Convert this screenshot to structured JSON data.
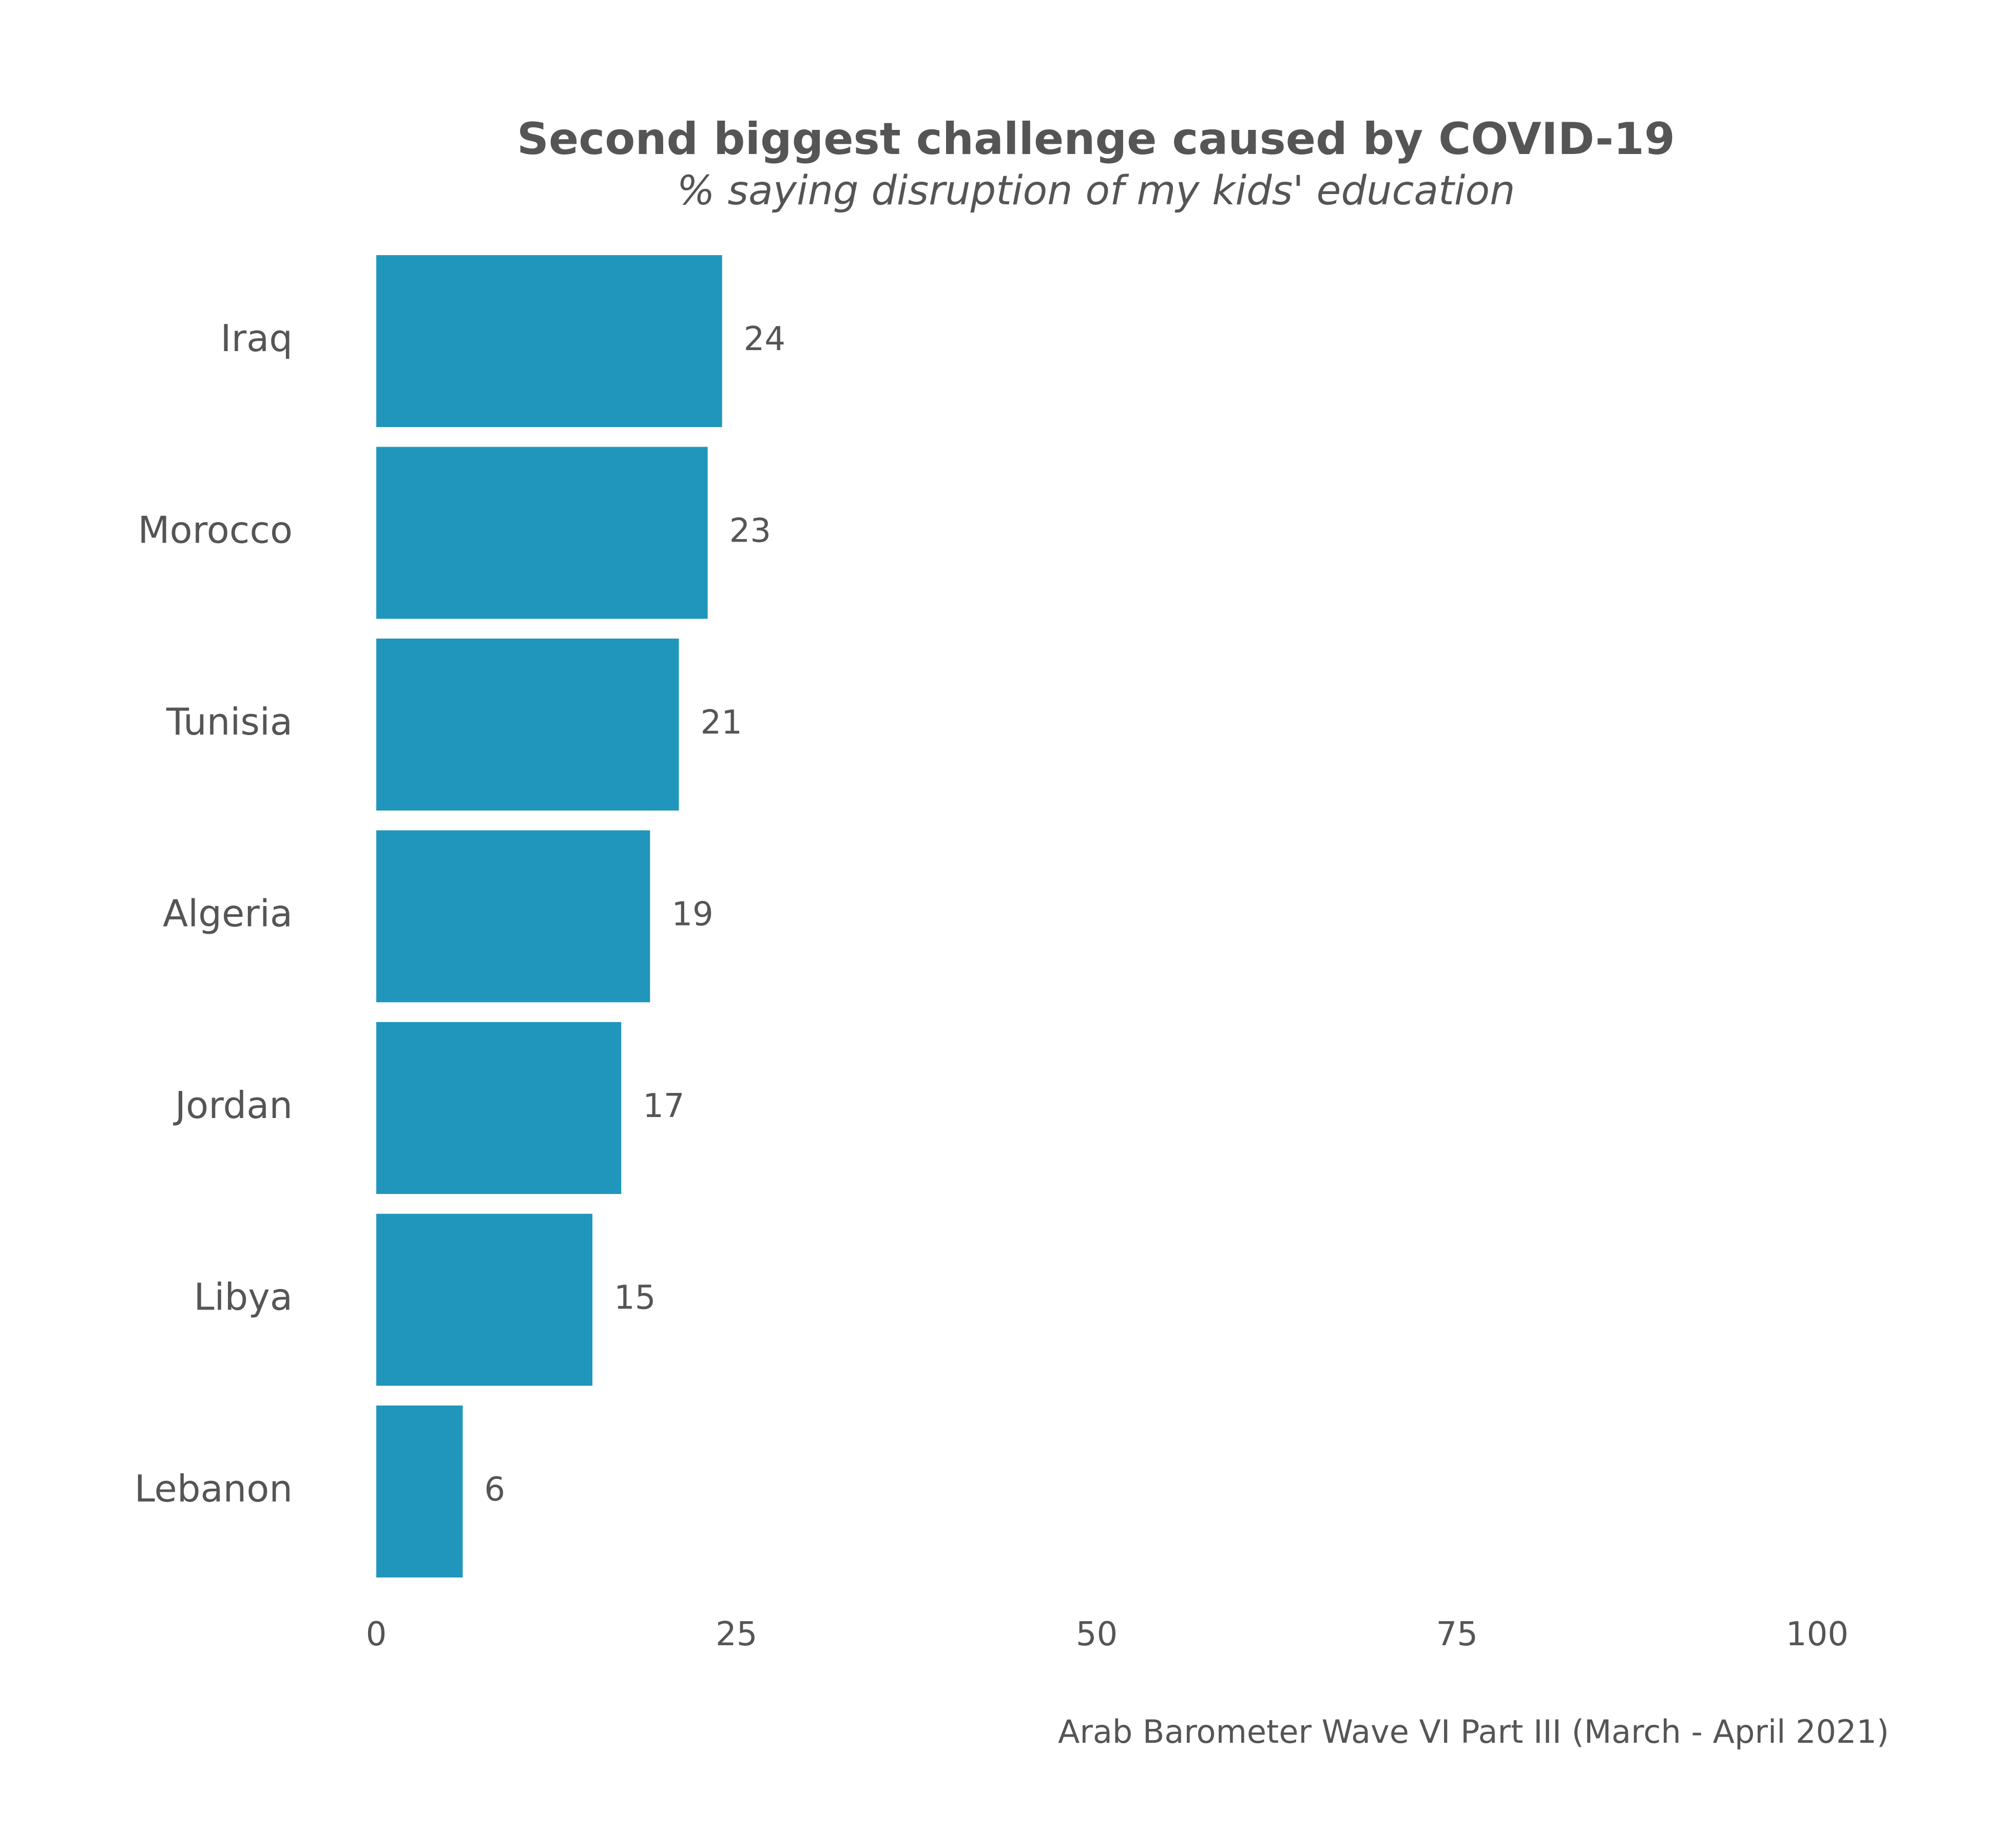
{
  "chart_data": {
    "type": "bar",
    "orientation": "horizontal",
    "title": "Second biggest challenge caused by COVID-19",
    "subtitle": "% saying disruption of my kids' education",
    "caption": "Arab Barometer Wave VI Part III (March - April 2021)",
    "categories": [
      "Iraq",
      "Morocco",
      "Tunisia",
      "Algeria",
      "Jordan",
      "Libya",
      "Lebanon"
    ],
    "values": [
      24,
      23,
      21,
      19,
      17,
      15,
      6
    ],
    "data_labels": [
      "24",
      "23",
      "21",
      "19",
      "17",
      "15",
      "6"
    ],
    "xlim": [
      0,
      100
    ],
    "xticks": [
      0,
      25,
      50,
      75,
      100
    ],
    "xtick_labels": [
      "0",
      "25",
      "50",
      "75",
      "100"
    ],
    "grid": false,
    "legend": "none",
    "bar_color": "#2196BC"
  }
}
